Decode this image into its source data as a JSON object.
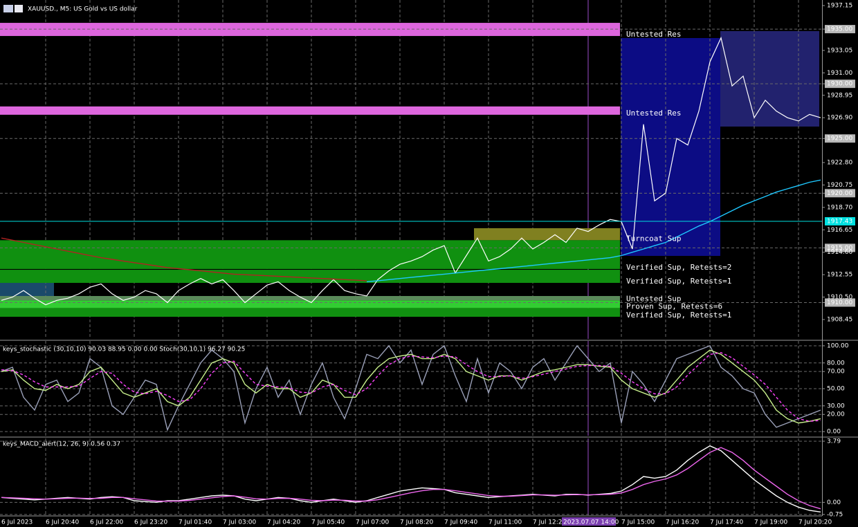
{
  "chart_data": [
    {
      "type": "line",
      "title": "XAUUSD., M5:  US Gold vs US dollar",
      "ylim": [
        1906.68,
        1937.66
      ],
      "yticks": [
        1937.15,
        {
          "value": 1935,
          "label": "1935.00"
        },
        1933.05,
        {
          "value": 1931,
          "label": "1931.00"
        },
        {
          "value": 1930,
          "label": "1930.00"
        },
        1928.95,
        {
          "value": 1926.9,
          "label": "1926.90"
        },
        {
          "value": 1925,
          "label": "1925.00"
        },
        {
          "value": 1922.8,
          "label": "1922.80"
        },
        1920.75,
        {
          "value": 1920,
          "label": "1920.00"
        },
        {
          "value": 1918.7,
          "label": "1918.70"
        },
        1916.65,
        {
          "value": 1915,
          "label": "1915.00"
        },
        {
          "value": 1914.6,
          "label": "1914.60"
        },
        1912.55,
        {
          "value": 1910.5,
          "label": "1910.50"
        },
        {
          "value": 1910,
          "label": "1910.00"
        },
        1908.45
      ],
      "last_price": 1917.43,
      "zones": [
        {
          "label": "Untested Res",
          "low": 1934.37,
          "high": 1935.57,
          "color": "#dd66dd"
        },
        {
          "label": "Untested Res",
          "low": 1927.17,
          "high": 1927.93,
          "color": "#dd66dd"
        },
        {
          "label": "Turncoat Sup",
          "low": 1915.7,
          "high": 1916.8,
          "color": "#808020"
        },
        {
          "label": "Verified Sup, Retests=2",
          "low": 1913.07,
          "high": 1915.7,
          "color": "#109010"
        },
        {
          "label": "Verified Sup, Retests=1",
          "low": 1911.8,
          "high": 1913.0,
          "color": "#109010"
        },
        {
          "label": "Untested Sup",
          "low": 1910.2,
          "high": 1910.6,
          "color": "#5a8a5a"
        },
        {
          "label": "Proven Sup, Retests=6",
          "low": 1909.5,
          "high": 1910.2,
          "color": "#32cd32"
        },
        {
          "label": "Verified Sup, Retests=1",
          "low": 1908.7,
          "high": 1909.5,
          "color": "#109010"
        }
      ],
      "series": [
        {
          "color": "#ffffff",
          "values": [
            1910.2,
            1910.5,
            1911.1,
            1910.4,
            1909.8,
            1910.2,
            1910.4,
            1910.8,
            1911.4,
            1911.7,
            1910.8,
            1910.2,
            1910.5,
            1911.1,
            1910.8,
            1910.0,
            1911.1,
            1911.7,
            1912.2,
            1911.7,
            1912.1,
            1911.1,
            1910.0,
            1910.8,
            1911.6,
            1911.9,
            1911.1,
            1910.5,
            1910.0,
            1911.1,
            1912.1,
            1911.1,
            1910.8,
            1910.6,
            1912.1,
            1912.9,
            1913.5,
            1913.8,
            1914.2,
            1914.8,
            1915.2,
            1912.7,
            1914.3,
            1915.9,
            1913.8,
            1914.2,
            1914.9,
            1915.9,
            1914.9,
            1915.5,
            1916.2,
            1915.5,
            1916.8,
            1916.5,
            1917.1,
            1917.6,
            1917.4,
            1914.9,
            1926.3,
            1919.3,
            1920.0,
            1925.0,
            1924.4,
            1927.5,
            1932.0,
            1934.2,
            1929.8,
            1930.7,
            1926.9,
            1928.5,
            1927.5,
            1926.9,
            1926.6,
            1927.2,
            1926.9
          ]
        },
        {
          "color": "#b22222",
          "values": [
            1915.9,
            1915.7,
            1915.5,
            1915.3,
            1915.1,
            1914.9,
            1914.7,
            1914.5,
            1914.3,
            1914.1,
            1913.95,
            1913.8,
            1913.65,
            1913.5,
            1913.35,
            1913.2,
            1913.1,
            1913.0,
            1912.9,
            1912.8,
            1912.7,
            1912.6,
            1912.55,
            1912.5,
            1912.45,
            1912.4,
            1912.35,
            1912.3,
            1912.25,
            1912.2,
            1912.15,
            1912.1,
            1912.05,
            1912.0,
            null,
            null,
            null,
            null,
            null,
            null,
            null,
            null,
            null,
            null,
            null,
            null,
            null,
            null,
            null,
            null,
            null,
            null,
            null,
            null,
            null,
            null,
            null,
            null,
            null,
            null,
            null,
            null,
            null,
            null,
            null,
            null,
            null,
            null,
            null,
            null,
            null,
            null,
            null,
            null,
            null
          ]
        },
        {
          "color": "#1ec8ff",
          "values": [
            null,
            null,
            null,
            null,
            null,
            null,
            null,
            null,
            null,
            null,
            null,
            null,
            null,
            null,
            null,
            null,
            null,
            null,
            null,
            null,
            null,
            null,
            null,
            null,
            null,
            null,
            null,
            null,
            null,
            null,
            null,
            null,
            null,
            1911.9,
            1912.0,
            1912.1,
            1912.2,
            1912.3,
            1912.4,
            1912.5,
            1912.6,
            1912.7,
            1912.8,
            1912.9,
            1913.0,
            1913.1,
            1913.2,
            1913.3,
            1913.4,
            1913.5,
            1913.6,
            1913.7,
            1913.8,
            1913.9,
            1914.0,
            1914.1,
            1914.3,
            1914.6,
            1914.9,
            1915.2,
            1915.5,
            1916.0,
            1916.5,
            1917.0,
            1917.4,
            1917.9,
            1918.4,
            1918.9,
            1919.3,
            1919.7,
            1920.1,
            1920.4,
            1920.7,
            1921.0,
            1921.2
          ]
        }
      ]
    },
    {
      "type": "line",
      "title": "keys_stochastic (30,10,10) 90.03 88.95 0.00 0.00 Stoch(30,10,1) 96.27 90.25",
      "ylim": [
        -4.8,
        105.6
      ],
      "yticks": [
        {
          "value": 100,
          "label": "100.00"
        },
        {
          "value": 80,
          "label": "80.00"
        },
        {
          "value": 70,
          "label": "70.00"
        },
        {
          "value": 50,
          "label": "50.00"
        },
        {
          "value": 30,
          "label": "30.00"
        },
        {
          "value": 20,
          "label": "20.00"
        },
        {
          "value": 0,
          "label": "0.00"
        }
      ],
      "series": [
        {
          "color": "#9aa0b8",
          "values": [
            70,
            75,
            40,
            25,
            55,
            60,
            35,
            45,
            85,
            75,
            30,
            20,
            40,
            60,
            55,
            2,
            30,
            55,
            80,
            95,
            85,
            70,
            10,
            50,
            75,
            40,
            60,
            20,
            55,
            80,
            40,
            15,
            50,
            90,
            85,
            100,
            80,
            95,
            55,
            90,
            100,
            65,
            35,
            85,
            45,
            80,
            70,
            50,
            75,
            85,
            60,
            80,
            100,
            85,
            70,
            80,
            10,
            70,
            55,
            35,
            60,
            85,
            90,
            95,
            100,
            75,
            65,
            50,
            45,
            20,
            5,
            10,
            15,
            20,
            25
          ]
        },
        {
          "color": "#c8f08c",
          "values": [
            70,
            72,
            60,
            50,
            48,
            55,
            50,
            55,
            70,
            75,
            60,
            45,
            40,
            45,
            50,
            35,
            30,
            40,
            60,
            80,
            85,
            80,
            55,
            45,
            55,
            50,
            50,
            40,
            45,
            60,
            55,
            40,
            40,
            60,
            75,
            85,
            88,
            90,
            85,
            85,
            90,
            85,
            70,
            65,
            60,
            65,
            65,
            60,
            65,
            70,
            72,
            75,
            78,
            78,
            76,
            75,
            60,
            50,
            45,
            40,
            45,
            60,
            75,
            85,
            95,
            90,
            80,
            70,
            60,
            45,
            25,
            15,
            10,
            12,
            15
          ]
        },
        {
          "color": "#ff44ff",
          "dashed": true,
          "values": [
            72,
            71,
            66,
            58,
            52,
            52,
            52,
            53,
            62,
            70,
            68,
            55,
            46,
            44,
            47,
            42,
            35,
            37,
            50,
            68,
            80,
            82,
            68,
            55,
            53,
            52,
            51,
            46,
            45,
            52,
            55,
            48,
            43,
            50,
            65,
            78,
            85,
            88,
            87,
            86,
            88,
            87,
            78,
            70,
            64,
            64,
            65,
            62,
            64,
            67,
            70,
            73,
            76,
            77,
            77,
            76,
            68,
            58,
            50,
            44,
            44,
            52,
            66,
            78,
            90,
            92,
            86,
            76,
            66,
            55,
            40,
            25,
            15,
            12,
            13
          ]
        }
      ]
    },
    {
      "type": "line",
      "title": "keys_MACD_alert(12, 26, 9) 0.56 0.37",
      "ylim": [
        -0.8,
        3.96
      ],
      "yticks": [
        3.79,
        {
          "value": 0,
          "label": "0.00"
        },
        -0.75
      ],
      "categories": [
        "6 Jul 2023",
        null,
        null,
        null,
        "6 Jul 20:40",
        null,
        null,
        null,
        "6 Jul 22:00",
        null,
        null,
        null,
        "6 Jul 23:20",
        null,
        null,
        null,
        "7 Jul 01:40",
        null,
        null,
        null,
        "7 Jul 03:00",
        null,
        null,
        null,
        "7 Jul 04:20",
        null,
        null,
        null,
        "7 Jul 05:40",
        null,
        null,
        null,
        "7 Jul 07:00",
        null,
        null,
        null,
        "7 Jul 08:20",
        null,
        null,
        null,
        "7 Jul 09:40",
        null,
        null,
        null,
        "7 Jul 11:00",
        null,
        null,
        null,
        "7 Jul 12:20",
        null,
        null,
        null,
        null,
        "2023.07.07 14:00",
        null,
        null,
        "7 Jul 15:00",
        null,
        null,
        null,
        "7 Jul 16:20",
        null,
        null,
        null,
        "7 Jul 17:40",
        null,
        null,
        null,
        "7 Jul 19:00",
        null,
        null,
        null,
        "7 Jul 20:20",
        null,
        null
      ],
      "series": [
        {
          "color": "#ffffff",
          "values": [
            0.3,
            0.25,
            0.2,
            0.15,
            0.2,
            0.25,
            0.3,
            0.25,
            0.2,
            0.3,
            0.35,
            0.3,
            0.1,
            0.05,
            0.0,
            0.1,
            0.1,
            0.2,
            0.3,
            0.4,
            0.45,
            0.4,
            0.2,
            0.1,
            0.2,
            0.3,
            0.25,
            0.1,
            0.0,
            0.1,
            0.2,
            0.1,
            0.0,
            0.1,
            0.3,
            0.5,
            0.7,
            0.8,
            0.9,
            0.85,
            0.8,
            0.6,
            0.5,
            0.4,
            0.3,
            0.35,
            0.4,
            0.45,
            0.5,
            0.45,
            0.4,
            0.5,
            0.5,
            0.45,
            0.5,
            0.55,
            0.7,
            1.1,
            1.6,
            1.5,
            1.6,
            2.0,
            2.6,
            3.1,
            3.5,
            3.2,
            2.6,
            2.0,
            1.4,
            0.9,
            0.4,
            0.0,
            -0.3,
            -0.5,
            -0.6
          ]
        },
        {
          "color": "#ee66ee",
          "values": [
            0.3,
            0.28,
            0.25,
            0.22,
            0.2,
            0.22,
            0.25,
            0.26,
            0.24,
            0.25,
            0.3,
            0.3,
            0.22,
            0.15,
            0.08,
            0.07,
            0.08,
            0.12,
            0.2,
            0.28,
            0.36,
            0.4,
            0.32,
            0.22,
            0.2,
            0.24,
            0.25,
            0.2,
            0.12,
            0.1,
            0.14,
            0.13,
            0.08,
            0.08,
            0.16,
            0.3,
            0.45,
            0.6,
            0.72,
            0.8,
            0.8,
            0.72,
            0.62,
            0.52,
            0.42,
            0.38,
            0.38,
            0.42,
            0.46,
            0.46,
            0.44,
            0.46,
            0.48,
            0.47,
            0.48,
            0.5,
            0.58,
            0.8,
            1.1,
            1.3,
            1.45,
            1.7,
            2.1,
            2.6,
            3.1,
            3.4,
            3.1,
            2.6,
            2.0,
            1.5,
            1.0,
            0.5,
            0.1,
            -0.2,
            -0.4
          ]
        }
      ]
    }
  ]
}
